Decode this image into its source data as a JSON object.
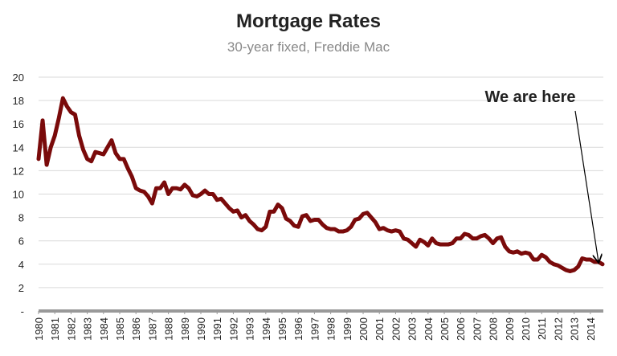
{
  "chart_data": {
    "type": "line",
    "title": "Mortgage Rates",
    "subtitle": "30-year fixed, Freddie Mac",
    "annotation": "We are here",
    "x": [
      1980,
      1980.25,
      1980.5,
      1980.75,
      1981,
      1981.25,
      1981.5,
      1981.75,
      1982,
      1982.25,
      1982.5,
      1982.75,
      1983,
      1983.25,
      1983.5,
      1983.75,
      1984,
      1984.25,
      1984.5,
      1984.75,
      1985,
      1985.25,
      1985.5,
      1985.75,
      1986,
      1986.25,
      1986.5,
      1986.75,
      1987,
      1987.25,
      1987.5,
      1987.75,
      1988,
      1988.25,
      1988.5,
      1988.75,
      1989,
      1989.25,
      1989.5,
      1989.75,
      1990,
      1990.25,
      1990.5,
      1990.75,
      1991,
      1991.25,
      1991.5,
      1991.75,
      1992,
      1992.25,
      1992.5,
      1992.75,
      1993,
      1993.25,
      1993.5,
      1993.75,
      1994,
      1994.25,
      1994.5,
      1994.75,
      1995,
      1995.25,
      1995.5,
      1995.75,
      1996,
      1996.25,
      1996.5,
      1996.75,
      1997,
      1997.25,
      1997.5,
      1997.75,
      1998,
      1998.25,
      1998.5,
      1998.75,
      1999,
      1999.25,
      1999.5,
      1999.75,
      2000,
      2000.25,
      2000.5,
      2000.75,
      2001,
      2001.25,
      2001.5,
      2001.75,
      2002,
      2002.25,
      2002.5,
      2002.75,
      2003,
      2003.25,
      2003.5,
      2003.75,
      2004,
      2004.25,
      2004.5,
      2004.75,
      2005,
      2005.25,
      2005.5,
      2005.75,
      2006,
      2006.25,
      2006.5,
      2006.75,
      2007,
      2007.25,
      2007.5,
      2007.75,
      2008,
      2008.25,
      2008.5,
      2008.75,
      2009,
      2009.25,
      2009.5,
      2009.75,
      2010,
      2010.25,
      2010.5,
      2010.75,
      2011,
      2011.25,
      2011.5,
      2011.75,
      2012,
      2012.25,
      2012.5,
      2012.75,
      2013,
      2013.25,
      2013.5,
      2013.75,
      2014,
      2014.25,
      2014.5,
      2014.75
    ],
    "series": [
      {
        "name": "30-year fixed",
        "color": "#7a0a0a",
        "values": [
          13,
          16.3,
          12.5,
          14,
          15,
          16.5,
          18.2,
          17.5,
          17,
          16.8,
          15,
          13.8,
          13,
          12.8,
          13.6,
          13.5,
          13.4,
          14,
          14.6,
          13.5,
          13,
          13,
          12.2,
          11.5,
          10.5,
          10.3,
          10.2,
          9.8,
          9.2,
          10.5,
          10.5,
          11,
          10,
          10.5,
          10.5,
          10.4,
          10.8,
          10.5,
          9.9,
          9.8,
          10,
          10.3,
          10,
          10,
          9.5,
          9.6,
          9.2,
          8.8,
          8.5,
          8.6,
          8,
          8.2,
          7.7,
          7.4,
          7,
          6.9,
          7.2,
          8.5,
          8.5,
          9.1,
          8.8,
          7.9,
          7.7,
          7.3,
          7.2,
          8.1,
          8.2,
          7.7,
          7.8,
          7.8,
          7.4,
          7.1,
          7,
          7,
          6.8,
          6.8,
          6.9,
          7.2,
          7.8,
          7.9,
          8.3,
          8.4,
          8,
          7.6,
          7,
          7.1,
          6.9,
          6.8,
          6.9,
          6.8,
          6.2,
          6.1,
          5.8,
          5.5,
          6.1,
          5.9,
          5.6,
          6.2,
          5.8,
          5.7,
          5.7,
          5.7,
          5.8,
          6.2,
          6.2,
          6.6,
          6.5,
          6.2,
          6.2,
          6.4,
          6.5,
          6.2,
          5.8,
          6.2,
          6.3,
          5.5,
          5.1,
          5,
          5.1,
          4.9,
          5,
          4.9,
          4.4,
          4.4,
          4.8,
          4.6,
          4.2,
          4,
          3.9,
          3.7,
          3.5,
          3.4,
          3.5,
          3.8,
          4.5,
          4.4,
          4.4,
          4.2,
          4.2,
          4
        ]
      }
    ],
    "xlim": [
      1980,
      2014.8
    ],
    "xticks": [
      1980,
      1981,
      1982,
      1983,
      1984,
      1985,
      1986,
      1987,
      1988,
      1989,
      1990,
      1991,
      1992,
      1993,
      1994,
      1995,
      1996,
      1997,
      1998,
      1999,
      2000,
      2001,
      2002,
      2003,
      2004,
      2005,
      2006,
      2007,
      2008,
      2009,
      2010,
      2011,
      2012,
      2013,
      2014
    ],
    "ylim": [
      0,
      20
    ],
    "yticks": [
      {
        "value": 0,
        "label": "-"
      },
      2,
      4,
      6,
      8,
      10,
      12,
      14,
      16,
      18,
      20
    ],
    "grid": true
  }
}
